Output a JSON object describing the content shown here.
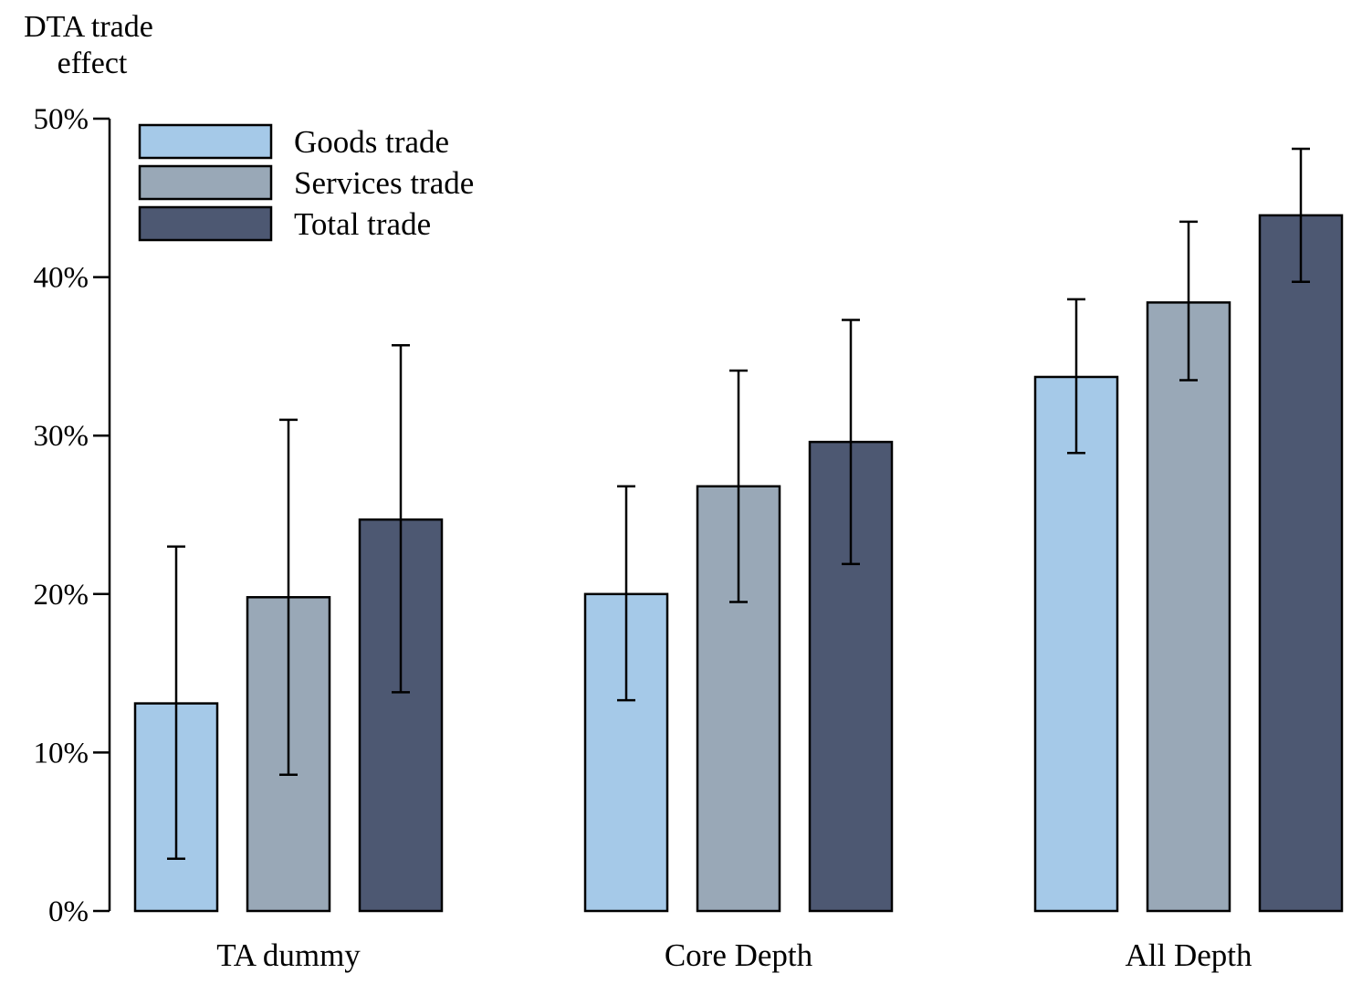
{
  "chart_data": {
    "type": "bar",
    "ylabel": [
      "DTA trade",
      "effect"
    ],
    "categories": [
      "TA dummy",
      "Core Depth",
      "All Depth"
    ],
    "ylim": [
      0,
      50
    ],
    "yticks": [
      0,
      10,
      20,
      30,
      40,
      50
    ],
    "ytick_labels": [
      "0%",
      "10%",
      "20%",
      "30%",
      "40%",
      "50%"
    ],
    "legend_position": "top-left",
    "grid": false,
    "series": [
      {
        "name": "Goods trade",
        "color": "#a5c9e8",
        "values": [
          13.1,
          20.0,
          33.7
        ],
        "err_low": [
          3.3,
          13.3,
          28.9
        ],
        "err_high": [
          23.0,
          26.8,
          38.6
        ]
      },
      {
        "name": "Services trade",
        "color": "#99a8b7",
        "values": [
          19.8,
          26.8,
          38.4
        ],
        "err_low": [
          8.6,
          19.5,
          33.5
        ],
        "err_high": [
          31.0,
          34.1,
          43.5
        ]
      },
      {
        "name": "Total trade",
        "color": "#4d5872",
        "values": [
          24.7,
          29.6,
          43.9
        ],
        "err_low": [
          13.8,
          21.9,
          39.7
        ],
        "err_high": [
          35.7,
          37.3,
          48.1
        ]
      }
    ]
  }
}
